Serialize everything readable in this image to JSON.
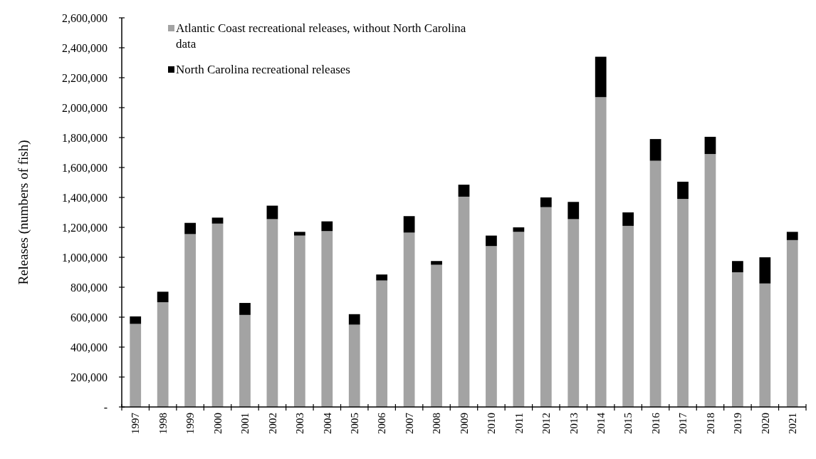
{
  "chart_data": {
    "type": "bar",
    "stacked": true,
    "ylabel": "Releases (numbers of fish)",
    "categories": [
      "1997",
      "1998",
      "1999",
      "2000",
      "2001",
      "2002",
      "2003",
      "2004",
      "2005",
      "2006",
      "2007",
      "2008",
      "2009",
      "2010",
      "2011",
      "2012",
      "2013",
      "2014",
      "2015",
      "2016",
      "2017",
      "2018",
      "2019",
      "2020",
      "2021"
    ],
    "series": [
      {
        "name": "Atlantic Coast recreational releases, without North Carolina data",
        "color": "#a3a3a3",
        "values": [
          555000,
          700000,
          1155000,
          1225000,
          615000,
          1255000,
          1145000,
          1175000,
          550000,
          845000,
          1165000,
          950000,
          1405000,
          1075000,
          1170000,
          1335000,
          1255000,
          2070000,
          1210000,
          1645000,
          1390000,
          1690000,
          900000,
          825000,
          1115000
        ]
      },
      {
        "name": "North Carolina recreational releases",
        "color": "#000000",
        "values": [
          50000,
          70000,
          75000,
          40000,
          80000,
          90000,
          25000,
          65000,
          70000,
          40000,
          110000,
          25000,
          80000,
          70000,
          30000,
          65000,
          115000,
          270000,
          90000,
          145000,
          115000,
          115000,
          75000,
          175000,
          55000
        ]
      }
    ],
    "ylim": [
      0,
      2600000
    ],
    "yticks": [
      {
        "value": 0,
        "label": "-"
      },
      {
        "value": 200000,
        "label": "200,000"
      },
      {
        "value": 400000,
        "label": "400,000"
      },
      {
        "value": 600000,
        "label": "600,000"
      },
      {
        "value": 800000,
        "label": "800,000"
      },
      {
        "value": 1000000,
        "label": "1,000,000"
      },
      {
        "value": 1200000,
        "label": "1,200,000"
      },
      {
        "value": 1400000,
        "label": "1,400,000"
      },
      {
        "value": 1600000,
        "label": "1,600,000"
      },
      {
        "value": 1800000,
        "label": "1,800,000"
      },
      {
        "value": 2000000,
        "label": "2,000,000"
      },
      {
        "value": 2200000,
        "label": "2,200,000"
      },
      {
        "value": 2400000,
        "label": "2,400,000"
      },
      {
        "value": 2600000,
        "label": "2,600,000"
      }
    ],
    "legend": "top left"
  }
}
